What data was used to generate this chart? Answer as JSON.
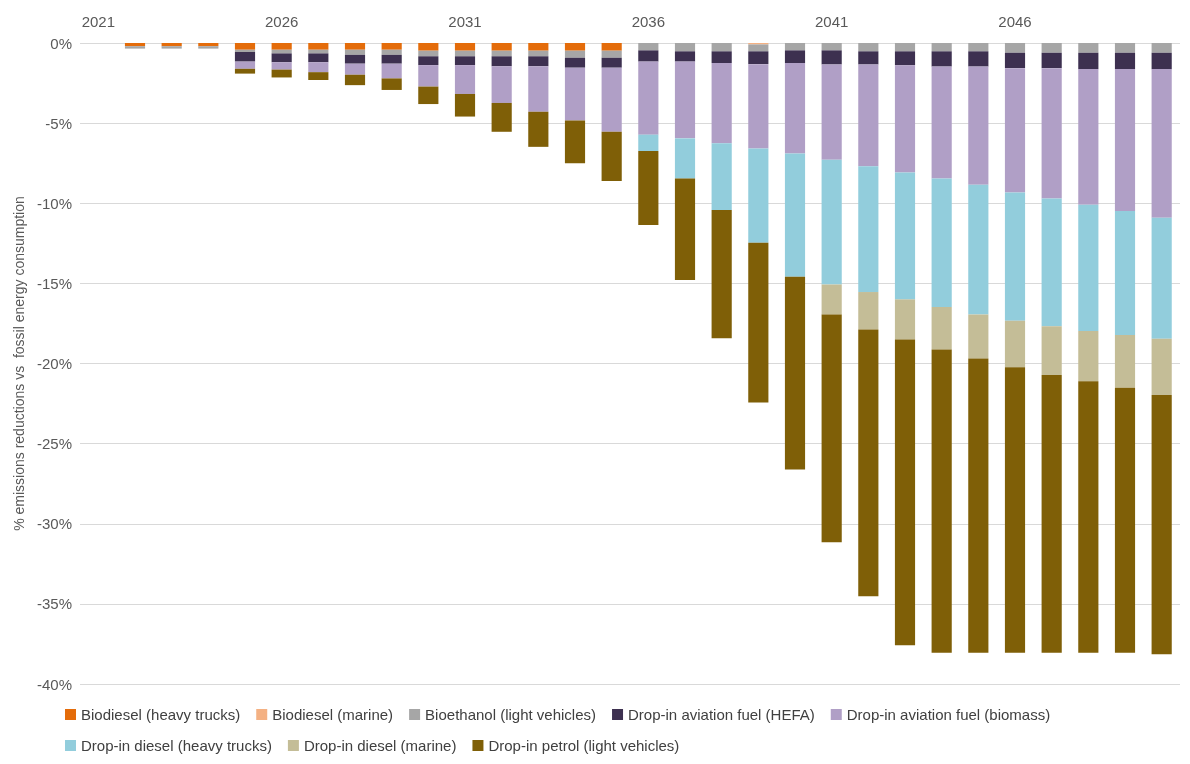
{
  "chart_data": {
    "type": "bar",
    "stacked": true,
    "ylabel": "% emissions reductions vs  fossil energy consumption",
    "categories": [
      "2021",
      null,
      null,
      null,
      null,
      "2026",
      null,
      null,
      null,
      null,
      "2031",
      null,
      null,
      null,
      null,
      "2036",
      null,
      null,
      null,
      null,
      "2041",
      null,
      null,
      null,
      null,
      "2046",
      null,
      null,
      null,
      null
    ],
    "ylim": [
      -40,
      0
    ],
    "yticks": [
      {
        "value": -40,
        "label": "-40%"
      },
      {
        "value": -35,
        "label": "-35%"
      },
      {
        "value": -30,
        "label": "-30%"
      },
      {
        "value": -25,
        "label": "-25%"
      },
      {
        "value": -20,
        "label": "-20%"
      },
      {
        "value": -15,
        "label": "-15%"
      },
      {
        "value": -10,
        "label": "-10%"
      },
      {
        "value": -5,
        "label": "-5%"
      },
      {
        "value": 0,
        "label": "0%"
      }
    ],
    "grid": "y",
    "legend": "bottom",
    "series": [
      {
        "name": "Biodiesel (heavy trucks)",
        "color": "#e46c0a",
        "values": [
          null,
          -0.2,
          -0.2,
          -0.2,
          -0.42,
          -0.42,
          -0.42,
          -0.42,
          -0.42,
          -0.48,
          -0.48,
          -0.48,
          -0.48,
          -0.48,
          -0.48,
          null,
          null,
          null,
          null,
          null,
          null,
          null,
          null,
          null,
          null,
          null,
          null,
          null,
          null,
          null
        ]
      },
      {
        "name": "Biodiesel (marine)",
        "color": "#f4b183",
        "values": [
          null,
          null,
          null,
          null,
          null,
          null,
          null,
          null,
          null,
          null,
          null,
          null,
          null,
          null,
          null,
          null,
          null,
          null,
          -0.09,
          null,
          null,
          null,
          null,
          null,
          null,
          null,
          null,
          null,
          null,
          null
        ]
      },
      {
        "name": "Bioethanol (light vehicles)",
        "color": "#a6a6a6",
        "values": [
          null,
          -0.15,
          -0.15,
          -0.15,
          -0.14,
          -0.23,
          -0.23,
          -0.32,
          -0.32,
          -0.35,
          -0.35,
          -0.35,
          -0.35,
          -0.44,
          -0.44,
          -0.46,
          -0.52,
          -0.52,
          -0.43,
          -0.46,
          -0.46,
          -0.52,
          -0.52,
          -0.52,
          -0.52,
          -0.61,
          -0.61,
          -0.61,
          -0.61,
          -0.61
        ]
      },
      {
        "name": "Drop-in aviation fuel (HEFA)",
        "color": "#3d3050",
        "values": [
          null,
          null,
          null,
          null,
          -0.6,
          -0.55,
          -0.55,
          -0.55,
          -0.55,
          -0.55,
          -0.55,
          -0.62,
          -0.62,
          -0.62,
          -0.62,
          -0.7,
          -0.64,
          -0.73,
          -0.8,
          -0.79,
          -0.88,
          -0.82,
          -0.87,
          -0.95,
          -0.95,
          -0.96,
          -0.96,
          -1.02,
          -1.02,
          -1.02
        ]
      },
      {
        "name": "Drop-in aviation fuel (biomass)",
        "color": "#b09fc6",
        "values": [
          null,
          null,
          null,
          null,
          -0.45,
          -0.46,
          -0.62,
          -0.69,
          -0.92,
          -1.34,
          -1.8,
          -2.29,
          -2.84,
          -3.3,
          -4.0,
          -4.56,
          -4.79,
          -5.01,
          -5.26,
          -5.65,
          -5.94,
          -6.35,
          -6.69,
          -6.99,
          -7.38,
          -7.76,
          -8.14,
          -8.47,
          -8.85,
          -9.27
        ]
      },
      {
        "name": "Drop-in diesel (heavy trucks)",
        "color": "#92cddc",
        "values": [
          null,
          null,
          null,
          null,
          null,
          null,
          null,
          null,
          null,
          null,
          null,
          null,
          null,
          null,
          null,
          -1.02,
          -2.51,
          -4.16,
          -5.88,
          -7.69,
          -7.79,
          -7.85,
          -7.92,
          -8.01,
          -8.1,
          -8.01,
          -7.97,
          -7.87,
          -7.74,
          -7.55
        ]
      },
      {
        "name": "Drop-in diesel (marine)",
        "color": "#c4bd97",
        "values": [
          null,
          null,
          null,
          null,
          null,
          null,
          null,
          null,
          null,
          null,
          null,
          null,
          null,
          null,
          null,
          null,
          null,
          null,
          null,
          null,
          -1.88,
          -2.34,
          -2.51,
          -2.66,
          -2.74,
          -2.9,
          -3.04,
          -3.13,
          -3.29,
          -3.52
        ]
      },
      {
        "name": "Drop-in petrol (light vehicles)",
        "color": "#7f5f07",
        "values": [
          null,
          null,
          null,
          null,
          -0.3,
          -0.49,
          -0.49,
          -0.65,
          -0.72,
          -1.09,
          -1.41,
          -1.8,
          -2.19,
          -2.66,
          -3.07,
          -4.62,
          -6.33,
          -8.01,
          -9.98,
          -12.03,
          -14.21,
          -16.65,
          -19.07,
          -18.92,
          -18.36,
          -17.81,
          -17.33,
          -16.95,
          -16.54,
          -16.18
        ]
      }
    ]
  }
}
